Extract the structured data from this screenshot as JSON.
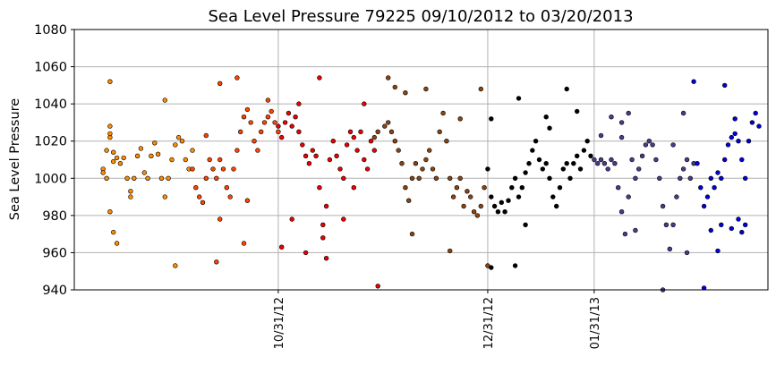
{
  "chart_data": {
    "type": "scatter",
    "title": "Sea Level Pressure 79225  09/10/2012 to 03/20/2013",
    "xlabel": "",
    "ylabel": "Sea Level Pressure",
    "x_range": [
      "2012-09-10",
      "2013-03-20"
    ],
    "ylim": [
      940,
      1080
    ],
    "yticks": [
      940,
      960,
      980,
      1000,
      1020,
      1040,
      1060,
      1080
    ],
    "xticks": [
      {
        "date": "2012-10-31",
        "label": "10/31/12"
      },
      {
        "date": "2012-12-31",
        "label": "12/31/12"
      },
      {
        "date": "2013-01-31",
        "label": "01/31/13"
      }
    ],
    "grid": true,
    "legend": "none",
    "series": [
      {
        "color": "#ff8c00",
        "points": [
          [
            "2012-09-10",
            1005
          ],
          [
            "2012-09-10",
            1003
          ],
          [
            "2012-09-11",
            1000
          ],
          [
            "2012-09-11",
            1015
          ],
          [
            "2012-09-12",
            1022
          ],
          [
            "2012-09-12",
            1024
          ],
          [
            "2012-09-13",
            1014
          ],
          [
            "2012-09-13",
            1009
          ],
          [
            "2012-09-14",
            1011
          ],
          [
            "2012-09-15",
            1008
          ],
          [
            "2012-09-16",
            1011
          ],
          [
            "2012-09-17",
            1000
          ],
          [
            "2012-09-18",
            993
          ],
          [
            "2012-09-18",
            990
          ],
          [
            "2012-09-19",
            1000
          ],
          [
            "2012-09-20",
            1012
          ],
          [
            "2012-09-21",
            1016
          ],
          [
            "2012-09-22",
            1003
          ],
          [
            "2012-09-23",
            1000
          ],
          [
            "2012-09-24",
            1012
          ],
          [
            "2012-09-25",
            1019
          ],
          [
            "2012-09-26",
            1013
          ],
          [
            "2012-09-27",
            1000
          ],
          [
            "2012-09-28",
            990
          ],
          [
            "2012-09-29",
            1000
          ],
          [
            "2012-09-30",
            1010
          ],
          [
            "2012-10-01",
            1018
          ],
          [
            "2012-10-02",
            1022
          ],
          [
            "2012-10-03",
            1020
          ],
          [
            "2012-10-04",
            1010
          ],
          [
            "2012-10-05",
            1005
          ],
          [
            "2012-10-06",
            1015
          ],
          [
            "2012-09-12",
            1052
          ],
          [
            "2012-09-12",
            982
          ],
          [
            "2012-09-13",
            971
          ],
          [
            "2012-09-14",
            965
          ],
          [
            "2012-09-28",
            1042
          ],
          [
            "2012-10-01",
            953
          ],
          [
            "2012-09-12",
            1028
          ]
        ]
      },
      {
        "color": "#ff4500",
        "points": [
          [
            "2012-10-06",
            1005
          ],
          [
            "2012-10-07",
            995
          ],
          [
            "2012-10-08",
            990
          ],
          [
            "2012-10-09",
            987
          ],
          [
            "2012-10-10",
            1000
          ],
          [
            "2012-10-11",
            1010
          ],
          [
            "2012-10-12",
            1005
          ],
          [
            "2012-10-13",
            1000
          ],
          [
            "2012-10-14",
            1010
          ],
          [
            "2012-10-15",
            1005
          ],
          [
            "2012-10-16",
            995
          ],
          [
            "2012-10-17",
            990
          ],
          [
            "2012-10-18",
            1005
          ],
          [
            "2012-10-19",
            1015
          ],
          [
            "2012-10-20",
            1025
          ],
          [
            "2012-10-21",
            1033
          ],
          [
            "2012-10-22",
            1037
          ],
          [
            "2012-10-23",
            1030
          ],
          [
            "2012-10-24",
            1020
          ],
          [
            "2012-10-25",
            1015
          ],
          [
            "2012-10-26",
            1025
          ],
          [
            "2012-10-27",
            1030
          ],
          [
            "2012-10-28",
            1033
          ],
          [
            "2012-10-29",
            1036
          ],
          [
            "2012-10-30",
            1030
          ],
          [
            "2012-10-31",
            1025
          ],
          [
            "2012-10-10",
            1023
          ],
          [
            "2012-10-13",
            955
          ],
          [
            "2012-10-14",
            978
          ],
          [
            "2012-10-14",
            1051
          ],
          [
            "2012-10-19",
            1054
          ],
          [
            "2012-10-21",
            965
          ],
          [
            "2012-10-22",
            988
          ],
          [
            "2012-10-28",
            1042
          ]
        ]
      },
      {
        "color": "#ee0000",
        "points": [
          [
            "2012-10-31",
            1028
          ],
          [
            "2012-11-01",
            1022
          ],
          [
            "2012-11-02",
            1030
          ],
          [
            "2012-11-03",
            1035
          ],
          [
            "2012-11-04",
            1028
          ],
          [
            "2012-11-05",
            1033
          ],
          [
            "2012-11-06",
            1025
          ],
          [
            "2012-11-07",
            1018
          ],
          [
            "2012-11-08",
            1012
          ],
          [
            "2012-11-09",
            1008
          ],
          [
            "2012-11-10",
            1015
          ],
          [
            "2012-11-11",
            1012
          ],
          [
            "2012-11-12",
            995
          ],
          [
            "2012-11-13",
            975
          ],
          [
            "2012-11-13",
            968
          ],
          [
            "2012-11-14",
            985
          ],
          [
            "2012-11-15",
            1010
          ],
          [
            "2012-11-16",
            1020
          ],
          [
            "2012-11-17",
            1012
          ],
          [
            "2012-11-18",
            1005
          ],
          [
            "2012-11-19",
            1000
          ],
          [
            "2012-11-20",
            1018
          ],
          [
            "2012-11-21",
            1025
          ],
          [
            "2012-11-22",
            1022
          ],
          [
            "2012-11-23",
            1015
          ],
          [
            "2012-11-24",
            1025
          ],
          [
            "2012-11-25",
            1010
          ],
          [
            "2012-11-26",
            1005
          ],
          [
            "2012-11-27",
            1020
          ],
          [
            "2012-11-28",
            1015
          ],
          [
            "2012-11-01",
            963
          ],
          [
            "2012-11-04",
            978
          ],
          [
            "2012-11-06",
            1040
          ],
          [
            "2012-11-08",
            960
          ],
          [
            "2012-11-12",
            1054
          ],
          [
            "2012-11-14",
            957
          ],
          [
            "2012-11-19",
            978
          ],
          [
            "2012-11-25",
            1040
          ],
          [
            "2012-11-29",
            942
          ],
          [
            "2012-11-22",
            995
          ]
        ]
      },
      {
        "color": "#8b4513",
        "points": [
          [
            "2012-11-28",
            1022
          ],
          [
            "2012-11-29",
            1025
          ],
          [
            "2012-12-01",
            1028
          ],
          [
            "2012-12-02",
            1030
          ],
          [
            "2012-12-03",
            1025
          ],
          [
            "2012-12-04",
            1020
          ],
          [
            "2012-12-05",
            1015
          ],
          [
            "2012-12-06",
            1008
          ],
          [
            "2012-12-07",
            995
          ],
          [
            "2012-12-08",
            988
          ],
          [
            "2012-12-09",
            1000
          ],
          [
            "2012-12-10",
            1008
          ],
          [
            "2012-12-11",
            1000
          ],
          [
            "2012-12-12",
            1005
          ],
          [
            "2012-12-13",
            1010
          ],
          [
            "2012-12-14",
            1015
          ],
          [
            "2012-12-15",
            1005
          ],
          [
            "2012-12-16",
            1000
          ],
          [
            "2012-12-17",
            1025
          ],
          [
            "2012-12-18",
            1035
          ],
          [
            "2012-12-19",
            1020
          ],
          [
            "2012-12-20",
            1000
          ],
          [
            "2012-12-21",
            990
          ],
          [
            "2012-12-22",
            995
          ],
          [
            "2012-12-23",
            1000
          ],
          [
            "2012-12-24",
            985
          ],
          [
            "2012-12-25",
            993
          ],
          [
            "2012-12-26",
            990
          ],
          [
            "2012-12-27",
            982
          ],
          [
            "2012-12-28",
            980
          ],
          [
            "2012-12-29",
            985
          ],
          [
            "2012-12-30",
            995
          ],
          [
            "2012-12-02",
            1054
          ],
          [
            "2012-12-04",
            1049
          ],
          [
            "2012-12-07",
            1046
          ],
          [
            "2012-12-13",
            1048
          ],
          [
            "2012-12-20",
            961
          ],
          [
            "2012-12-23",
            1032
          ],
          [
            "2012-12-31",
            953
          ],
          [
            "2012-12-29",
            1048
          ],
          [
            "2012-12-09",
            970
          ]
        ]
      },
      {
        "color": "#000000",
        "points": [
          [
            "2012-12-31",
            1005
          ],
          [
            "2013-01-01",
            990
          ],
          [
            "2013-01-02",
            985
          ],
          [
            "2013-01-03",
            982
          ],
          [
            "2013-01-04",
            987
          ],
          [
            "2013-01-05",
            982
          ],
          [
            "2013-01-06",
            988
          ],
          [
            "2013-01-07",
            995
          ],
          [
            "2013-01-08",
            1000
          ],
          [
            "2013-01-09",
            990
          ],
          [
            "2013-01-10",
            995
          ],
          [
            "2013-01-11",
            1003
          ],
          [
            "2013-01-12",
            1008
          ],
          [
            "2013-01-13",
            1015
          ],
          [
            "2013-01-14",
            1020
          ],
          [
            "2013-01-15",
            1010
          ],
          [
            "2013-01-16",
            1005
          ],
          [
            "2013-01-17",
            1008
          ],
          [
            "2013-01-18",
            1000
          ],
          [
            "2013-01-19",
            990
          ],
          [
            "2013-01-20",
            985
          ],
          [
            "2013-01-21",
            995
          ],
          [
            "2013-01-22",
            1005
          ],
          [
            "2013-01-23",
            1008
          ],
          [
            "2013-01-24",
            1000
          ],
          [
            "2013-01-25",
            1008
          ],
          [
            "2013-01-26",
            1012
          ],
          [
            "2013-01-27",
            1005
          ],
          [
            "2013-01-28",
            1015
          ],
          [
            "2013-01-29",
            1020
          ],
          [
            "2013-01-30",
            1012
          ],
          [
            "2013-01-01",
            1032
          ],
          [
            "2013-01-01",
            952
          ],
          [
            "2013-01-08",
            953
          ],
          [
            "2013-01-09",
            1043
          ],
          [
            "2013-01-17",
            1033
          ],
          [
            "2013-01-23",
            1048
          ],
          [
            "2013-01-26",
            1036
          ],
          [
            "2013-01-18",
            1027
          ],
          [
            "2013-01-11",
            975
          ]
        ]
      },
      {
        "color": "#483d8b",
        "points": [
          [
            "2013-01-31",
            1010
          ],
          [
            "2013-02-01",
            1008
          ],
          [
            "2013-02-02",
            1010
          ],
          [
            "2013-02-03",
            1008
          ],
          [
            "2013-02-04",
            1005
          ],
          [
            "2013-02-05",
            1010
          ],
          [
            "2013-02-06",
            1008
          ],
          [
            "2013-02-07",
            995
          ],
          [
            "2013-02-08",
            982
          ],
          [
            "2013-02-09",
            970
          ],
          [
            "2013-02-10",
            990
          ],
          [
            "2013-02-11",
            1010
          ],
          [
            "2013-02-12",
            1000
          ],
          [
            "2013-02-13",
            1005
          ],
          [
            "2013-02-14",
            1012
          ],
          [
            "2013-02-15",
            1018
          ],
          [
            "2013-02-16",
            1020
          ],
          [
            "2013-02-17",
            1018
          ],
          [
            "2013-02-18",
            1010
          ],
          [
            "2013-02-19",
            1000
          ],
          [
            "2013-02-20",
            985
          ],
          [
            "2013-02-21",
            975
          ],
          [
            "2013-02-22",
            962
          ],
          [
            "2013-02-23",
            975
          ],
          [
            "2013-02-24",
            990
          ],
          [
            "2013-02-25",
            1000
          ],
          [
            "2013-02-26",
            1005
          ],
          [
            "2013-02-27",
            1010
          ],
          [
            "2013-02-28",
            1000
          ],
          [
            "2013-03-01",
            1008
          ],
          [
            "2013-02-02",
            1023
          ],
          [
            "2013-02-05",
            1033
          ],
          [
            "2013-02-08",
            1030
          ],
          [
            "2013-02-08",
            1022
          ],
          [
            "2013-02-10",
            1035
          ],
          [
            "2013-02-12",
            972
          ],
          [
            "2013-02-20",
            940
          ],
          [
            "2013-02-26",
            1035
          ],
          [
            "2013-02-23",
            1018
          ],
          [
            "2013-02-27",
            960
          ]
        ]
      },
      {
        "color": "#0000dd",
        "points": [
          [
            "2013-03-02",
            1008
          ],
          [
            "2013-03-03",
            995
          ],
          [
            "2013-03-04",
            985
          ],
          [
            "2013-03-05",
            990
          ],
          [
            "2013-03-06",
            1000
          ],
          [
            "2013-03-07",
            995
          ],
          [
            "2013-03-08",
            1003
          ],
          [
            "2013-03-09",
            1000
          ],
          [
            "2013-03-10",
            1010
          ],
          [
            "2013-03-11",
            1018
          ],
          [
            "2013-03-12",
            1022
          ],
          [
            "2013-03-13",
            1024
          ],
          [
            "2013-03-14",
            1020
          ],
          [
            "2013-03-15",
            1010
          ],
          [
            "2013-03-16",
            1000
          ],
          [
            "2013-03-17",
            1020
          ],
          [
            "2013-03-18",
            1030
          ],
          [
            "2013-03-19",
            1035
          ],
          [
            "2013-03-20",
            1028
          ],
          [
            "2013-03-01",
            1052
          ],
          [
            "2013-03-04",
            941
          ],
          [
            "2013-03-06",
            972
          ],
          [
            "2013-03-08",
            961
          ],
          [
            "2013-03-09",
            975
          ],
          [
            "2013-03-10",
            1050
          ],
          [
            "2013-03-12",
            973
          ],
          [
            "2013-03-13",
            1032
          ],
          [
            "2013-03-14",
            978
          ],
          [
            "2013-03-15",
            971
          ],
          [
            "2013-03-16",
            975
          ]
        ]
      }
    ]
  }
}
